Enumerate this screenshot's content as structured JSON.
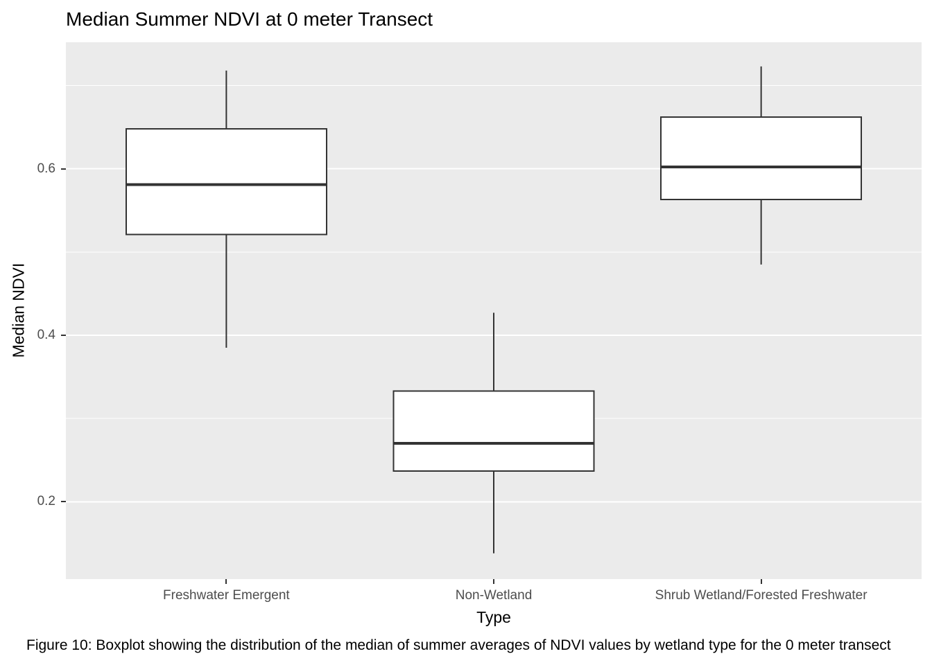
{
  "figure": {
    "title": "Median Summer NDVI at 0 meter Transect",
    "caption": "Figure 10: Boxplot showing the distribution of the median of summer averages of NDVI values by wetland type for the 0 meter transect"
  },
  "chart_data": {
    "type": "boxplot",
    "title": "Median Summer NDVI at 0 meter Transect",
    "xlabel": "Type",
    "ylabel": "Median NDVI",
    "categories": [
      "Freshwater Emergent",
      "Non-Wetland",
      "Shrub Wetland/Forested Freshwater"
    ],
    "series": [
      {
        "name": "Freshwater Emergent",
        "whisker_min": 0.385,
        "q1": 0.521,
        "median": 0.581,
        "q3": 0.648,
        "whisker_max": 0.718
      },
      {
        "name": "Non-Wetland",
        "whisker_min": 0.138,
        "q1": 0.237,
        "median": 0.27,
        "q3": 0.333,
        "whisker_max": 0.427
      },
      {
        "name": "Shrub Wetland/Forested Freshwater",
        "whisker_min": 0.485,
        "q1": 0.563,
        "median": 0.602,
        "q3": 0.662,
        "whisker_max": 0.723
      }
    ],
    "y_ticks": [
      0.2,
      0.4,
      0.6
    ],
    "y_tick_labels": [
      "0.2",
      "0.4",
      "0.6"
    ],
    "y_minor_gridlines": [
      0.3,
      0.5,
      0.7
    ],
    "ylim": [
      0.107,
      0.752
    ],
    "grid": true,
    "legend_position": "none",
    "colors": {
      "panel_background": "#EBEBEB",
      "gridline_major": "#FFFFFF",
      "gridline_minor": "#FFFFFF",
      "box_stroke": "#333333",
      "box_fill": "#FFFFFF",
      "median_stroke": "#333333",
      "tick_mark": "#333333",
      "axis_text": "#4D4D4D",
      "title_text": "#000000"
    }
  }
}
